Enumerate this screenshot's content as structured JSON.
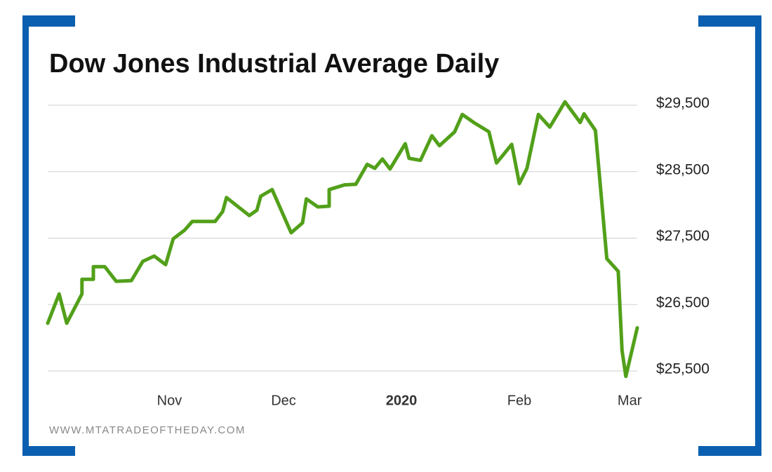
{
  "chart_data": {
    "type": "line",
    "title": "Dow Jones Industrial Average Daily",
    "footer": "WWW.MTATRADEOFTHEDAY.COM",
    "color": "#52a01a",
    "grid": true,
    "x": [
      0,
      3,
      5,
      9,
      9,
      12,
      12,
      15,
      18,
      22,
      25,
      28,
      31,
      33,
      36,
      38,
      44,
      46,
      47,
      53,
      55,
      56,
      59,
      64,
      67,
      68,
      71,
      74,
      74,
      78,
      81,
      84,
      86,
      88,
      90,
      94,
      95,
      98,
      101,
      103,
      107,
      109,
      112,
      116,
      118,
      122,
      124,
      126,
      129,
      132,
      136,
      140,
      141,
      144,
      147,
      150,
      151,
      152,
      155
    ],
    "values": [
      26220,
      26660,
      26220,
      26660,
      26880,
      26880,
      27070,
      27070,
      26850,
      26860,
      27150,
      27230,
      27100,
      27490,
      27620,
      27750,
      27750,
      27900,
      28110,
      27840,
      27920,
      28130,
      28230,
      27580,
      27730,
      28090,
      27970,
      27980,
      28230,
      28300,
      28310,
      28610,
      28550,
      28690,
      28540,
      28920,
      28700,
      28670,
      29040,
      28890,
      29100,
      29360,
      29240,
      29100,
      28630,
      28910,
      28320,
      28550,
      29360,
      29170,
      29550,
      29240,
      29370,
      29120,
      27190,
      27000,
      25810,
      25420,
      26150
    ],
    "xlim": [
      0,
      155
    ],
    "xticks": [
      {
        "value": 32,
        "label": "Nov"
      },
      {
        "value": 62,
        "label": "Dec"
      },
      {
        "value": 93,
        "label": "2020"
      },
      {
        "value": 124,
        "label": "Feb"
      },
      {
        "value": 153,
        "label": "Mar"
      }
    ],
    "ylim": [
      25300,
      29700
    ],
    "yticks": [
      {
        "value": 25500,
        "label": "$25,500"
      },
      {
        "value": 26500,
        "label": "$26,500"
      },
      {
        "value": 27500,
        "label": "$27,500"
      },
      {
        "value": 28500,
        "label": "$28,500"
      },
      {
        "value": 29500,
        "label": "$29,500"
      }
    ]
  }
}
